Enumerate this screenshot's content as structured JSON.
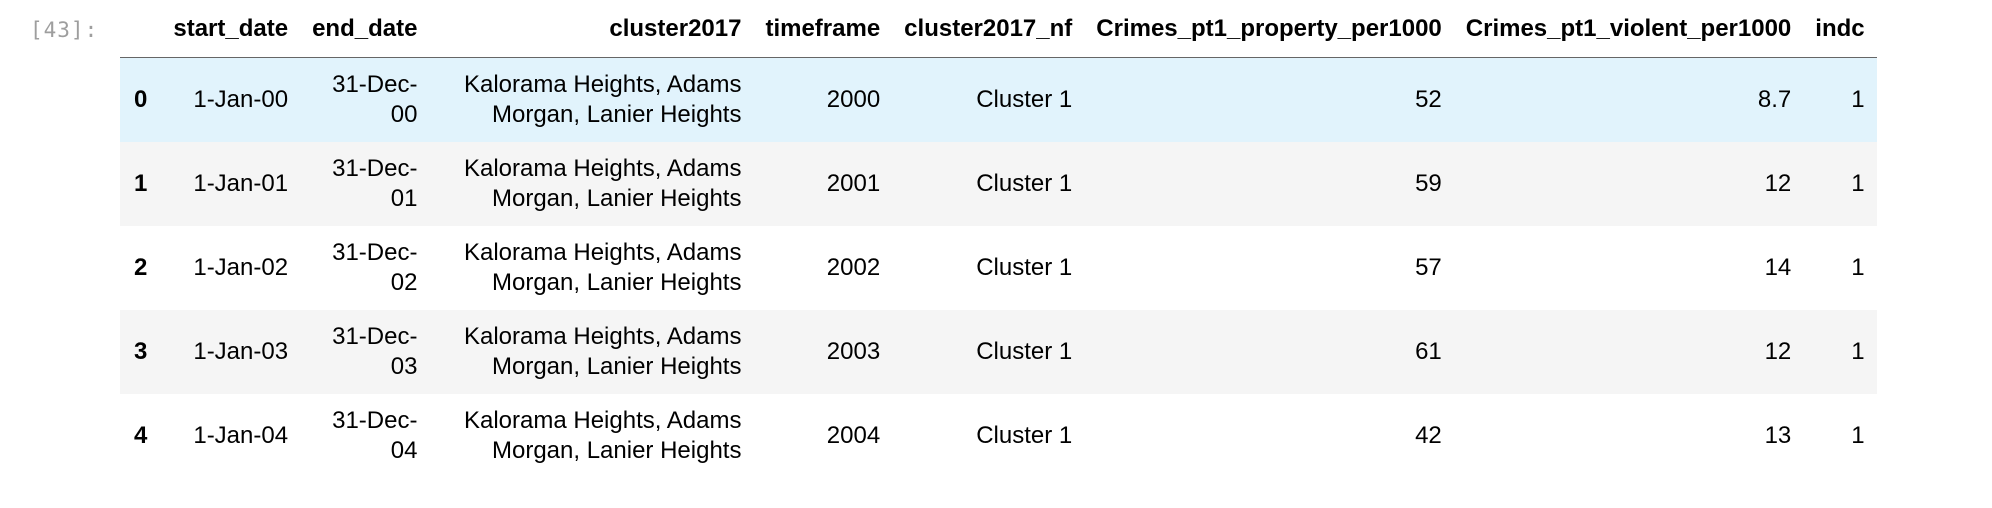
{
  "cell": {
    "prompt": "[43]:"
  },
  "table": {
    "columns": [
      "",
      "start_date",
      "end_date",
      "cluster2017",
      "timeframe",
      "cluster2017_nf",
      "Crimes_pt1_property_per1000",
      "Crimes_pt1_violent_per1000",
      "indc"
    ],
    "rows": [
      {
        "index": "0",
        "start_date": "1-Jan-00",
        "end_date_1": "31-Dec-",
        "end_date_2": "00",
        "cluster_1": "Kalorama Heights, Adams",
        "cluster_2": "Morgan, Lanier Heights",
        "timeframe": "2000",
        "cluster2017_nf": "Cluster 1",
        "property": "52",
        "violent": "8.7",
        "indc": "1"
      },
      {
        "index": "1",
        "start_date": "1-Jan-01",
        "end_date_1": "31-Dec-",
        "end_date_2": "01",
        "cluster_1": "Kalorama Heights, Adams",
        "cluster_2": "Morgan, Lanier Heights",
        "timeframe": "2001",
        "cluster2017_nf": "Cluster 1",
        "property": "59",
        "violent": "12",
        "indc": "1"
      },
      {
        "index": "2",
        "start_date": "1-Jan-02",
        "end_date_1": "31-Dec-",
        "end_date_2": "02",
        "cluster_1": "Kalorama Heights, Adams",
        "cluster_2": "Morgan, Lanier Heights",
        "timeframe": "2002",
        "cluster2017_nf": "Cluster 1",
        "property": "57",
        "violent": "14",
        "indc": "1"
      },
      {
        "index": "3",
        "start_date": "1-Jan-03",
        "end_date_1": "31-Dec-",
        "end_date_2": "03",
        "cluster_1": "Kalorama Heights, Adams",
        "cluster_2": "Morgan, Lanier Heights",
        "timeframe": "2003",
        "cluster2017_nf": "Cluster 1",
        "property": "61",
        "violent": "12",
        "indc": "1"
      },
      {
        "index": "4",
        "start_date": "1-Jan-04",
        "end_date_1": "31-Dec-",
        "end_date_2": "04",
        "cluster_1": "Kalorama Heights, Adams",
        "cluster_2": "Morgan, Lanier Heights",
        "timeframe": "2004",
        "cluster2017_nf": "Cluster 1",
        "property": "42",
        "violent": "13",
        "indc": "1"
      }
    ]
  },
  "colors": {
    "hover_row": "#e1f3fc",
    "odd_row": "#f5f5f5",
    "prompt_text": "#9e9e9e"
  }
}
